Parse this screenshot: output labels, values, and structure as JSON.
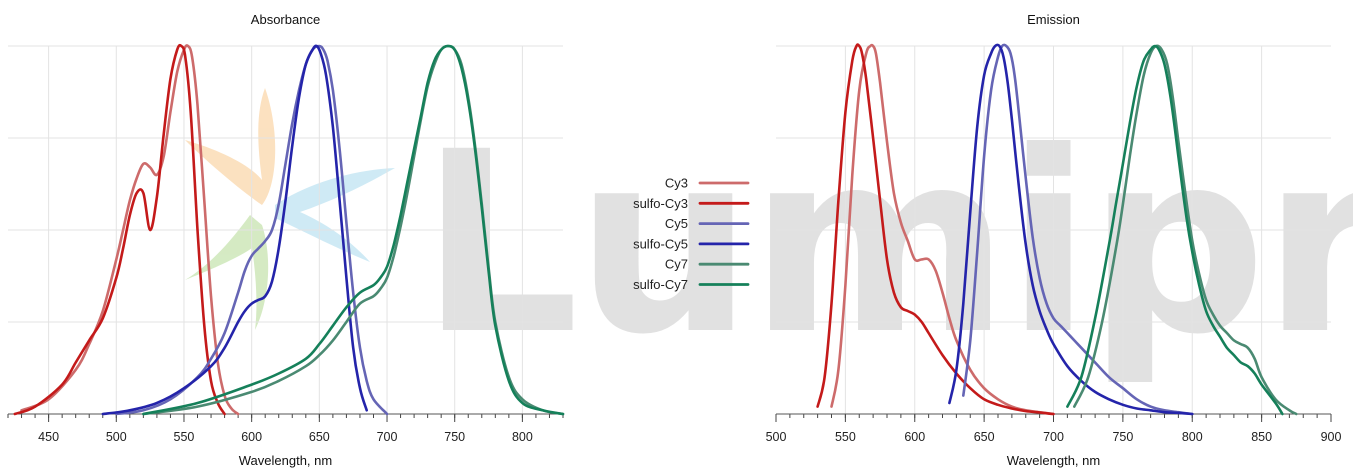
{
  "watermark": {
    "text": "Lumiprobe",
    "colors": [
      "#f7b86a",
      "#9ccf72",
      "#8fcfe8"
    ]
  },
  "legend": {
    "placement": "center",
    "entries": [
      {
        "name": "Cy3",
        "color": "#cd6b6b"
      },
      {
        "name": "sulfo-Cy3",
        "color": "#c41a1a"
      },
      {
        "name": "Cy5",
        "color": "#6565b5"
      },
      {
        "name": "sulfo-Cy5",
        "color": "#2424aa"
      },
      {
        "name": "Cy7",
        "color": "#4a8a72"
      },
      {
        "name": "sulfo-Cy7",
        "color": "#15805a"
      }
    ]
  },
  "chart_data": [
    {
      "type": "line",
      "title": "Absorbance",
      "xlabel": "Wavelength, nm",
      "ylabel": "",
      "xlim": [
        420,
        830
      ],
      "ylim": [
        0,
        1
      ],
      "xticks": [
        450,
        500,
        550,
        600,
        650,
        700,
        750,
        800
      ],
      "grid": true,
      "legend": "center (shared)",
      "series": [
        {
          "name": "Cy3",
          "color": "#cd6b6b",
          "x": [
            430,
            450,
            470,
            480,
            490,
            500,
            505,
            510,
            515,
            520,
            525,
            530,
            535,
            540,
            545,
            550,
            553,
            556,
            560,
            565,
            570,
            575,
            580,
            585,
            590
          ],
          "y": [
            0.01,
            0.04,
            0.12,
            0.19,
            0.28,
            0.42,
            0.5,
            0.58,
            0.64,
            0.68,
            0.67,
            0.65,
            0.7,
            0.82,
            0.93,
            0.99,
            1.0,
            0.97,
            0.84,
            0.58,
            0.32,
            0.14,
            0.05,
            0.015,
            0.0
          ]
        },
        {
          "name": "sulfo-Cy3",
          "color": "#c41a1a",
          "x": [
            425,
            440,
            460,
            470,
            480,
            490,
            500,
            505,
            510,
            515,
            520,
            525,
            530,
            535,
            540,
            545,
            548,
            551,
            555,
            560,
            565,
            570,
            575,
            580
          ],
          "y": [
            0.0,
            0.02,
            0.08,
            0.14,
            0.2,
            0.26,
            0.37,
            0.45,
            0.54,
            0.6,
            0.6,
            0.5,
            0.59,
            0.76,
            0.91,
            0.99,
            1.0,
            0.97,
            0.82,
            0.5,
            0.24,
            0.09,
            0.03,
            0.0
          ]
        },
        {
          "name": "Cy5",
          "color": "#6565b5",
          "x": [
            500,
            520,
            540,
            560,
            570,
            580,
            590,
            595,
            600,
            605,
            610,
            615,
            620,
            625,
            630,
            635,
            640,
            645,
            650,
            653,
            656,
            660,
            665,
            670,
            675,
            680,
            685,
            690,
            700
          ],
          "y": [
            0.0,
            0.01,
            0.04,
            0.1,
            0.15,
            0.22,
            0.33,
            0.39,
            0.43,
            0.45,
            0.47,
            0.5,
            0.57,
            0.68,
            0.79,
            0.88,
            0.95,
            0.99,
            1.0,
            0.99,
            0.96,
            0.88,
            0.72,
            0.52,
            0.33,
            0.18,
            0.09,
            0.04,
            0.0
          ]
        },
        {
          "name": "sulfo-Cy5",
          "color": "#2424aa",
          "x": [
            490,
            510,
            530,
            550,
            570,
            580,
            590,
            595,
            600,
            605,
            610,
            615,
            620,
            625,
            630,
            635,
            640,
            645,
            648,
            651,
            655,
            660,
            665,
            670,
            675,
            680,
            685
          ],
          "y": [
            0.0,
            0.01,
            0.03,
            0.07,
            0.13,
            0.18,
            0.25,
            0.28,
            0.3,
            0.31,
            0.32,
            0.36,
            0.45,
            0.58,
            0.73,
            0.86,
            0.95,
            0.99,
            1.0,
            0.98,
            0.92,
            0.78,
            0.58,
            0.37,
            0.18,
            0.07,
            0.01
          ]
        },
        {
          "name": "Cy7",
          "color": "#4a8a72",
          "x": [
            520,
            560,
            600,
            620,
            640,
            650,
            660,
            670,
            680,
            690,
            695,
            700,
            705,
            710,
            715,
            720,
            725,
            730,
            735,
            740,
            745,
            750,
            755,
            760,
            765,
            770,
            775,
            780,
            790,
            800,
            815,
            830
          ],
          "y": [
            0.0,
            0.02,
            0.06,
            0.09,
            0.13,
            0.16,
            0.2,
            0.25,
            0.3,
            0.32,
            0.34,
            0.37,
            0.43,
            0.51,
            0.6,
            0.7,
            0.8,
            0.89,
            0.95,
            0.99,
            1.0,
            0.99,
            0.95,
            0.86,
            0.73,
            0.57,
            0.4,
            0.25,
            0.1,
            0.04,
            0.01,
            0.0
          ]
        },
        {
          "name": "sulfo-Cy7",
          "color": "#15805a",
          "x": [
            520,
            560,
            600,
            620,
            640,
            650,
            660,
            670,
            680,
            690,
            695,
            700,
            705,
            710,
            715,
            720,
            725,
            730,
            735,
            740,
            745,
            750,
            755,
            760,
            765,
            770,
            775,
            780,
            790,
            800,
            815,
            830
          ],
          "y": [
            0.0,
            0.03,
            0.08,
            0.11,
            0.15,
            0.19,
            0.24,
            0.29,
            0.33,
            0.35,
            0.37,
            0.4,
            0.46,
            0.54,
            0.63,
            0.72,
            0.81,
            0.9,
            0.96,
            0.99,
            1.0,
            0.99,
            0.94,
            0.85,
            0.72,
            0.56,
            0.39,
            0.24,
            0.09,
            0.03,
            0.01,
            0.0
          ]
        }
      ]
    },
    {
      "type": "line",
      "title": "Emission",
      "xlabel": "Wavelength, nm",
      "ylabel": "",
      "xlim": [
        500,
        900
      ],
      "ylim": [
        0,
        1
      ],
      "xticks": [
        500,
        550,
        600,
        650,
        700,
        750,
        800,
        850,
        900
      ],
      "grid": true,
      "legend": "center (shared)",
      "series": [
        {
          "name": "Cy3",
          "color": "#cd6b6b",
          "x": [
            540,
            545,
            550,
            555,
            560,
            565,
            568,
            570,
            572,
            575,
            580,
            585,
            590,
            595,
            600,
            605,
            610,
            615,
            620,
            625,
            630,
            640,
            650,
            660,
            670,
            680,
            690,
            700
          ],
          "y": [
            0.02,
            0.12,
            0.35,
            0.65,
            0.88,
            0.98,
            1.0,
            1.0,
            0.98,
            0.9,
            0.74,
            0.6,
            0.52,
            0.47,
            0.42,
            0.42,
            0.42,
            0.39,
            0.33,
            0.26,
            0.2,
            0.12,
            0.07,
            0.04,
            0.02,
            0.01,
            0.005,
            0.0
          ]
        },
        {
          "name": "sulfo-Cy3",
          "color": "#c41a1a",
          "x": [
            530,
            535,
            540,
            545,
            550,
            555,
            558,
            560,
            562,
            565,
            570,
            575,
            580,
            585,
            590,
            595,
            600,
            605,
            610,
            620,
            630,
            640,
            650,
            660,
            670,
            680,
            690,
            700
          ],
          "y": [
            0.02,
            0.1,
            0.3,
            0.58,
            0.82,
            0.96,
            1.0,
            1.0,
            0.98,
            0.91,
            0.75,
            0.58,
            0.42,
            0.33,
            0.29,
            0.28,
            0.27,
            0.25,
            0.22,
            0.16,
            0.11,
            0.07,
            0.04,
            0.025,
            0.015,
            0.008,
            0.004,
            0.0
          ]
        },
        {
          "name": "Cy5",
          "color": "#6565b5",
          "x": [
            635,
            640,
            645,
            650,
            655,
            660,
            663,
            666,
            669,
            672,
            675,
            680,
            685,
            690,
            695,
            700,
            705,
            710,
            715,
            720,
            730,
            740,
            750,
            760,
            770,
            780,
            790,
            800
          ],
          "y": [
            0.05,
            0.2,
            0.44,
            0.7,
            0.88,
            0.97,
            1.0,
            1.0,
            0.98,
            0.92,
            0.82,
            0.64,
            0.48,
            0.37,
            0.3,
            0.26,
            0.24,
            0.22,
            0.2,
            0.18,
            0.14,
            0.1,
            0.07,
            0.04,
            0.02,
            0.01,
            0.005,
            0.0
          ]
        },
        {
          "name": "sulfo-Cy5",
          "color": "#2424aa",
          "x": [
            625,
            630,
            635,
            640,
            645,
            650,
            655,
            658,
            661,
            664,
            667,
            670,
            675,
            680,
            685,
            690,
            695,
            700,
            710,
            720,
            730,
            740,
            750,
            760,
            770,
            780,
            790,
            800
          ],
          "y": [
            0.03,
            0.12,
            0.3,
            0.55,
            0.78,
            0.92,
            0.98,
            1.0,
            1.0,
            0.97,
            0.9,
            0.8,
            0.62,
            0.46,
            0.35,
            0.28,
            0.23,
            0.19,
            0.13,
            0.09,
            0.06,
            0.04,
            0.025,
            0.015,
            0.01,
            0.005,
            0.003,
            0.0
          ]
        },
        {
          "name": "Cy7",
          "color": "#4a8a72",
          "x": [
            715,
            725,
            735,
            745,
            750,
            755,
            760,
            765,
            770,
            774,
            778,
            782,
            786,
            790,
            795,
            800,
            805,
            810,
            815,
            820,
            825,
            830,
            835,
            840,
            845,
            850,
            860,
            870,
            875
          ],
          "y": [
            0.02,
            0.1,
            0.25,
            0.45,
            0.57,
            0.7,
            0.82,
            0.92,
            0.98,
            1.0,
            0.99,
            0.95,
            0.86,
            0.74,
            0.6,
            0.47,
            0.38,
            0.31,
            0.27,
            0.24,
            0.22,
            0.2,
            0.19,
            0.18,
            0.15,
            0.1,
            0.04,
            0.01,
            0.0
          ]
        },
        {
          "name": "sulfo-Cy7",
          "color": "#15805a",
          "x": [
            710,
            720,
            730,
            740,
            745,
            750,
            755,
            760,
            765,
            770,
            773,
            776,
            780,
            784,
            788,
            792,
            796,
            800,
            805,
            810,
            815,
            820,
            825,
            830,
            835,
            840,
            845,
            850,
            860,
            865
          ],
          "y": [
            0.02,
            0.1,
            0.26,
            0.46,
            0.57,
            0.68,
            0.79,
            0.89,
            0.96,
            0.99,
            1.0,
            0.99,
            0.95,
            0.87,
            0.76,
            0.64,
            0.53,
            0.44,
            0.35,
            0.28,
            0.24,
            0.21,
            0.18,
            0.16,
            0.14,
            0.13,
            0.11,
            0.08,
            0.03,
            0.0
          ]
        }
      ]
    }
  ]
}
